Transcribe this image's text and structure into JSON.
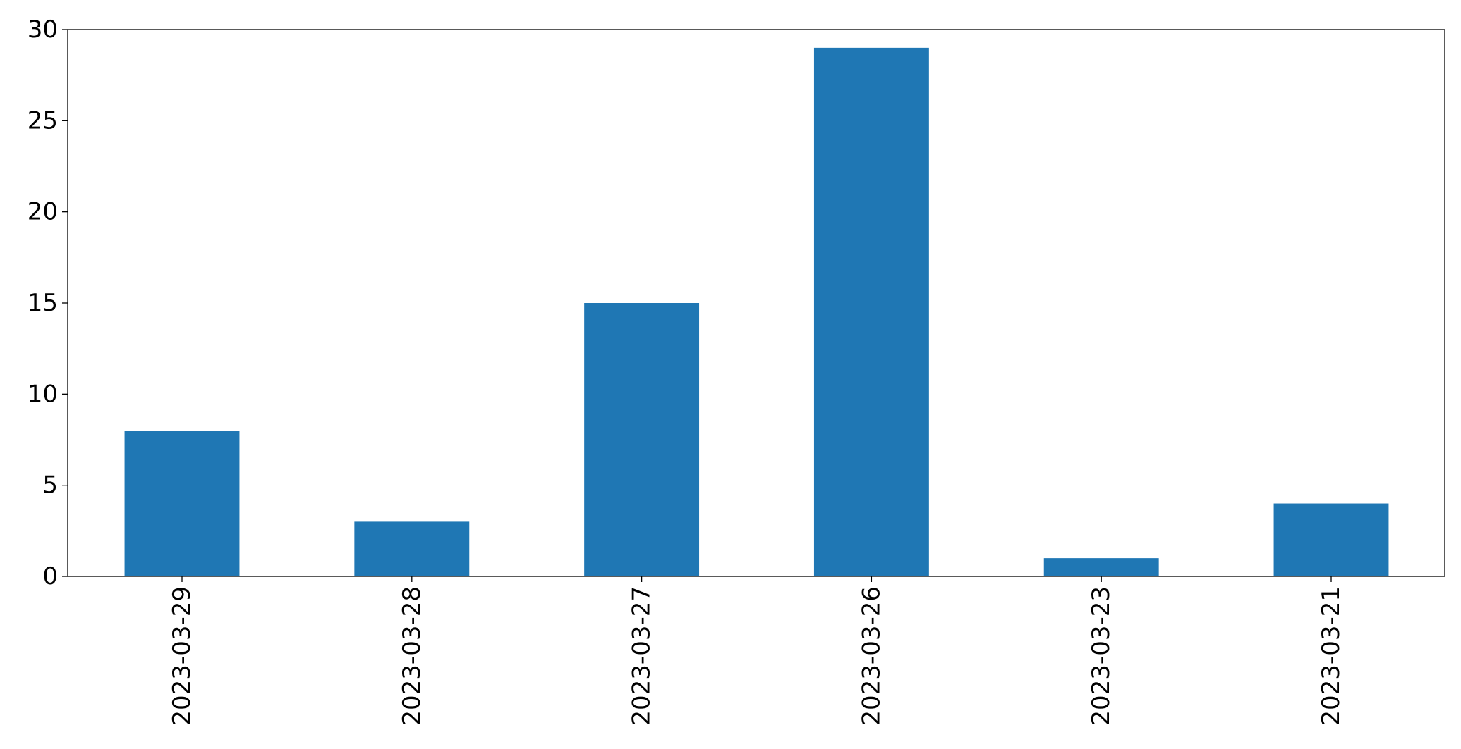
{
  "chart_data": {
    "type": "bar",
    "title": "",
    "xlabel": "",
    "ylabel": "",
    "categories": [
      "2023-03-29",
      "2023-03-28",
      "2023-03-27",
      "2023-03-26",
      "2023-03-23",
      "2023-03-21"
    ],
    "series": [
      {
        "values": [
          8,
          3,
          15,
          29,
          1,
          4
        ]
      }
    ],
    "ylim": [
      0,
      30
    ],
    "yticks": [
      0,
      5,
      10,
      15,
      20,
      25,
      30
    ],
    "ytick_labels": [
      "0",
      "5",
      "10",
      "15",
      "20",
      "25",
      "30"
    ],
    "grid": false,
    "legend": "none",
    "bar_color": "#1f77b4",
    "x_tick_rotation": "vertical"
  }
}
